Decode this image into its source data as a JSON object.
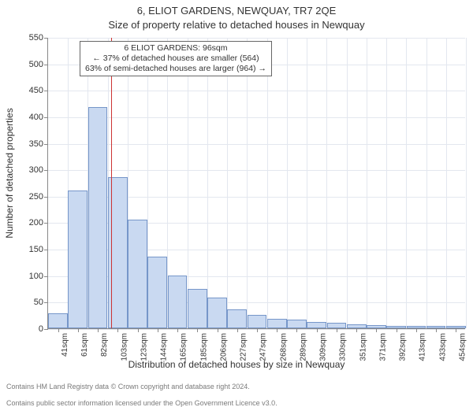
{
  "titles": {
    "address": "6, ELIOT GARDENS, NEWQUAY, TR7 2QE",
    "subtitle": "Size of property relative to detached houses in Newquay",
    "ylabel": "Number of detached properties",
    "xlabel": "Distribution of detached houses by size in Newquay"
  },
  "footer": {
    "line1": "Contains HM Land Registry data © Crown copyright and database right 2024.",
    "line2": "Contains public sector information licensed under the Open Government Licence v3.0."
  },
  "chart": {
    "type": "histogram",
    "background_color": "#ffffff",
    "grid_color": "#e3e7ef",
    "axis_color": "#888888",
    "bar_fill": "#c9d9f1",
    "bar_border": "#7696c9",
    "refline_color": "#cc3333",
    "text_color": "#333333",
    "ylim": [
      0,
      550
    ],
    "yticks": [
      0,
      50,
      100,
      150,
      200,
      250,
      300,
      350,
      400,
      450,
      500,
      550
    ],
    "reference_value_sqm": 96,
    "categories": [
      "41sqm",
      "61sqm",
      "82sqm",
      "103sqm",
      "123sqm",
      "144sqm",
      "165sqm",
      "185sqm",
      "206sqm",
      "227sqm",
      "247sqm",
      "268sqm",
      "289sqm",
      "309sqm",
      "330sqm",
      "351sqm",
      "371sqm",
      "392sqm",
      "413sqm",
      "433sqm",
      "454sqm"
    ],
    "values": [
      28,
      260,
      418,
      285,
      205,
      135,
      100,
      75,
      58,
      35,
      25,
      18,
      16,
      12,
      10,
      8,
      6,
      5,
      5,
      5,
      5
    ],
    "annotation": {
      "line1": "6 ELIOT GARDENS: 96sqm",
      "line2": "← 37% of detached houses are smaller (564)",
      "line3": "63% of semi-detached houses are larger (964) →"
    },
    "title_fontsize": 13,
    "label_fontsize": 12,
    "tick_fontsize": 10,
    "annot_fontsize": 10.5,
    "footer_fontsize": 9
  }
}
